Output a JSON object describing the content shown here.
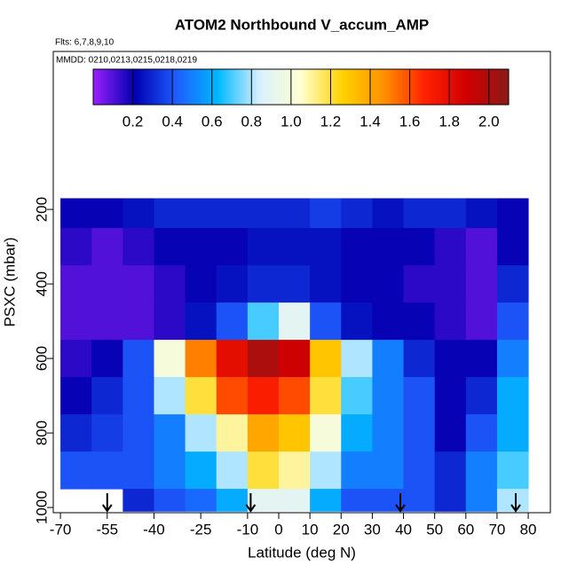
{
  "chart_data": {
    "type": "heatmap",
    "title": "ATOM2 Northbound V_accum_AMP",
    "subtitle": "Flts: 6,7,8,9,10",
    "annotation": "MMDD: 0210,0213,0215,0218,0219",
    "xlabel": "Latitude (deg N)",
    "ylabel": "PSXC (mbar)",
    "xlim": [
      -72.3,
      87.1
    ],
    "ylim": [
      1014,
      -224
    ],
    "xticks": [
      -70,
      -55,
      -40,
      -25,
      -10,
      0,
      10,
      20,
      30,
      40,
      50,
      60,
      70,
      80
    ],
    "yticks": [
      200,
      400,
      600,
      800,
      1000
    ],
    "x_edges": [
      -70,
      -60,
      -50,
      -40,
      -30,
      -20,
      -10,
      0,
      10,
      20,
      30,
      40,
      50,
      60,
      70,
      80
    ],
    "y_edges": [
      170,
      250,
      350,
      450,
      550,
      650,
      750,
      850,
      950,
      1010
    ],
    "values": [
      [
        0.2,
        0.2,
        0.25,
        0.3,
        0.3,
        0.3,
        0.3,
        0.3,
        0.35,
        0.3,
        0.25,
        0.3,
        0.3,
        0.25,
        0.2
      ],
      [
        0.15,
        0.1,
        0.15,
        0.2,
        0.2,
        0.2,
        0.25,
        0.25,
        0.25,
        0.2,
        0.2,
        0.2,
        0.15,
        0.1,
        0.2
      ],
      [
        0.1,
        0.1,
        0.1,
        0.15,
        0.2,
        0.25,
        0.3,
        0.3,
        0.25,
        0.2,
        0.2,
        0.15,
        0.15,
        0.1,
        0.3
      ],
      [
        0.1,
        0.1,
        0.1,
        0.15,
        0.25,
        0.4,
        0.7,
        0.9,
        0.4,
        0.25,
        0.2,
        0.2,
        0.15,
        0.1,
        0.4
      ],
      [
        0.15,
        0.2,
        0.4,
        1.0,
        1.5,
        1.8,
        2.0,
        1.9,
        1.3,
        0.8,
        0.5,
        0.3,
        0.2,
        0.2,
        0.5
      ],
      [
        0.2,
        0.3,
        0.4,
        0.8,
        1.2,
        1.6,
        1.7,
        1.6,
        1.2,
        0.7,
        0.5,
        0.4,
        0.2,
        0.3,
        0.6
      ],
      [
        0.3,
        0.35,
        0.4,
        0.5,
        0.8,
        1.1,
        1.4,
        1.3,
        1.0,
        0.6,
        0.5,
        0.4,
        0.2,
        0.4,
        0.6
      ],
      [
        0.4,
        0.4,
        0.4,
        0.5,
        0.6,
        0.8,
        1.2,
        1.1,
        0.8,
        0.5,
        0.5,
        0.4,
        0.3,
        0.5,
        0.7
      ],
      [
        null,
        null,
        0.3,
        0.4,
        0.45,
        0.6,
        0.9,
        0.9,
        0.6,
        0.4,
        0.4,
        0.4,
        0.3,
        0.5,
        0.8
      ]
    ],
    "colorbar_lim": [
      0,
      2.1
    ],
    "colorbar_ticks": [
      0.2,
      0.4,
      0.6,
      0.8,
      {
        "value": 1,
        "label": "1.0"
      },
      1.2,
      1.4,
      1.6,
      1.8,
      {
        "value": 2,
        "label": "2.0"
      }
    ],
    "colormap": [
      "#9a20ff",
      "#0000b0",
      "#1e5cff",
      "#00b8ff",
      "#d8f0ff",
      "#ffffd0",
      "#ffd200",
      "#ff9000",
      "#ff2000",
      "#d00000",
      "#8b1a1a"
    ],
    "arrows": [
      -55,
      -9,
      39,
      76
    ]
  }
}
